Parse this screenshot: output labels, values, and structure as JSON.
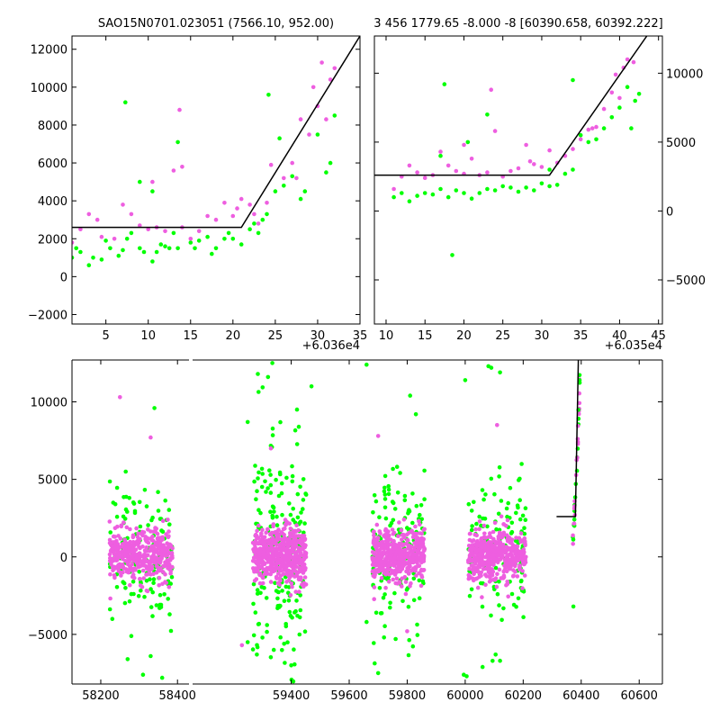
{
  "colors": {
    "series_a": "#00ff00",
    "series_b": "#ee5ee0",
    "fit_line": "#000000",
    "background": "#ffffff"
  },
  "chart_data": [
    {
      "type": "scatter",
      "title": "SAO15N0701.023051 (7566.10, 952.00)",
      "xlabel": "",
      "ylabel": "",
      "x_offset_label": "+6.036e4",
      "xlim": [
        1,
        35
      ],
      "ylim": [
        -2500,
        12700
      ],
      "x_ticks": [
        5,
        10,
        15,
        20,
        25,
        30,
        35
      ],
      "x_tick_labels": [
        "5",
        "10",
        "15",
        "20",
        "25",
        "30",
        "35"
      ],
      "y_ticks": [
        -2000,
        0,
        2000,
        4000,
        6000,
        8000,
        10000,
        12000
      ],
      "y_tick_labels": [
        "−2000",
        "0",
        "2000",
        "4000",
        "6000",
        "8000",
        "10000",
        "12000"
      ],
      "y_axis_side": "left",
      "series": [
        {
          "points": [
            [
              1,
              1000
            ],
            [
              1.5,
              1500
            ],
            [
              2,
              1300
            ],
            [
              3,
              600
            ],
            [
              3.5,
              1000
            ],
            [
              4.5,
              900
            ],
            [
              5,
              1900
            ],
            [
              5.5,
              1500
            ],
            [
              6.5,
              1100
            ],
            [
              7,
              1400
            ],
            [
              7.5,
              2000
            ],
            [
              8,
              2300
            ],
            [
              9,
              1500
            ],
            [
              9.5,
              1300
            ],
            [
              10.5,
              800
            ],
            [
              11,
              1300
            ],
            [
              11.5,
              1700
            ],
            [
              12,
              1600
            ],
            [
              12.5,
              1500
            ],
            [
              13,
              2300
            ],
            [
              13.5,
              1500
            ],
            [
              15,
              1800
            ],
            [
              15.5,
              1500
            ],
            [
              16,
              1900
            ],
            [
              17,
              2100
            ],
            [
              17.5,
              1200
            ],
            [
              18,
              1500
            ],
            [
              19,
              2000
            ],
            [
              19.5,
              2300
            ],
            [
              20,
              2000
            ],
            [
              21,
              1700
            ],
            [
              22,
              2500
            ],
            [
              22.5,
              2800
            ],
            [
              23,
              2300
            ],
            [
              23.5,
              3000
            ],
            [
              24,
              3300
            ],
            [
              25,
              4500
            ],
            [
              25.5,
              7300
            ],
            [
              26,
              4800
            ],
            [
              27,
              5300
            ],
            [
              28,
              4100
            ],
            [
              28.5,
              4500
            ],
            [
              30,
              7500
            ],
            [
              31,
              5500
            ],
            [
              31.5,
              6000
            ],
            [
              32,
              8500
            ],
            [
              13.5,
              7100
            ],
            [
              7.3,
              9200
            ],
            [
              9,
              5000
            ],
            [
              24.2,
              9600
            ],
            [
              10.5,
              4500
            ]
          ]
        },
        {
          "points": [
            [
              1,
              1800
            ],
            [
              2,
              2500
            ],
            [
              3,
              3300
            ],
            [
              4,
              3000
            ],
            [
              4.5,
              2100
            ],
            [
              6,
              2000
            ],
            [
              7,
              3800
            ],
            [
              8,
              3300
            ],
            [
              9,
              2700
            ],
            [
              10,
              2500
            ],
            [
              10.5,
              5000
            ],
            [
              11,
              2600
            ],
            [
              12,
              2400
            ],
            [
              13,
              5600
            ],
            [
              14,
              2600
            ],
            [
              15,
              2000
            ],
            [
              16,
              2400
            ],
            [
              17,
              3200
            ],
            [
              18,
              3000
            ],
            [
              19,
              3900
            ],
            [
              20,
              3200
            ],
            [
              21,
              4100
            ],
            [
              22,
              3800
            ],
            [
              22.5,
              3300
            ],
            [
              24,
              3900
            ],
            [
              24.5,
              5900
            ],
            [
              26,
              5200
            ],
            [
              27,
              6000
            ],
            [
              28,
              8300
            ],
            [
              29,
              7500
            ],
            [
              30,
              9000
            ],
            [
              31,
              8300
            ],
            [
              31.5,
              10400
            ],
            [
              32,
              11000
            ],
            [
              13.7,
              8800
            ],
            [
              14,
              5800
            ],
            [
              20.5,
              3600
            ],
            [
              23,
              2800
            ],
            [
              29.5,
              10000
            ],
            [
              30.5,
              11300
            ],
            [
              27.5,
              5200
            ]
          ]
        }
      ],
      "fit": {
        "x": [
          1,
          21,
          35
        ],
        "y": [
          2600,
          2600,
          12700
        ]
      }
    },
    {
      "type": "scatter",
      "title": "3 456 1779.65 -8.000 -8 [60390.658, 60392.222]",
      "xlabel": "",
      "ylabel": "",
      "x_offset_label": "+6.035e4",
      "xlim": [
        8.5,
        45.5
      ],
      "ylim": [
        -8200,
        12700
      ],
      "x_ticks": [
        10,
        15,
        20,
        25,
        30,
        35,
        40,
        45
      ],
      "x_tick_labels": [
        "10",
        "15",
        "20",
        "25",
        "30",
        "35",
        "40",
        "45"
      ],
      "y_ticks": [
        -5000,
        0,
        5000,
        10000
      ],
      "y_tick_labels": [
        "−5000",
        "0",
        "5000",
        "10000"
      ],
      "y_axis_side": "right",
      "series": [
        {
          "points": [
            [
              11,
              1000
            ],
            [
              12,
              1300
            ],
            [
              13,
              700
            ],
            [
              14,
              1100
            ],
            [
              15,
              1300
            ],
            [
              16,
              1200
            ],
            [
              17,
              1600
            ],
            [
              18,
              1000
            ],
            [
              19,
              1500
            ],
            [
              20,
              1300
            ],
            [
              21,
              900
            ],
            [
              22,
              1300
            ],
            [
              23,
              1600
            ],
            [
              24,
              1500
            ],
            [
              25,
              1800
            ],
            [
              26,
              1700
            ],
            [
              27,
              1400
            ],
            [
              28,
              1700
            ],
            [
              29,
              1500
            ],
            [
              30,
              2000
            ],
            [
              31,
              1800
            ],
            [
              32,
              1900
            ],
            [
              33,
              2700
            ],
            [
              34,
              3000
            ],
            [
              35,
              5500
            ],
            [
              36,
              5000
            ],
            [
              37,
              5200
            ],
            [
              38,
              6000
            ],
            [
              39,
              6800
            ],
            [
              40,
              7500
            ],
            [
              41,
              9000
            ],
            [
              41.5,
              6000
            ],
            [
              42,
              8000
            ],
            [
              42.5,
              8500
            ],
            [
              17.5,
              9200
            ],
            [
              18.5,
              -3200
            ],
            [
              17,
              4000
            ],
            [
              20.5,
              5000
            ],
            [
              34,
              9500
            ],
            [
              23,
              7000
            ],
            [
              31,
              3000
            ]
          ]
        },
        {
          "points": [
            [
              11,
              1600
            ],
            [
              12,
              2500
            ],
            [
              13,
              3300
            ],
            [
              14,
              2800
            ],
            [
              15,
              2400
            ],
            [
              16,
              2600
            ],
            [
              17,
              4300
            ],
            [
              18,
              3300
            ],
            [
              19,
              2900
            ],
            [
              20,
              2700
            ],
            [
              21,
              3800
            ],
            [
              22,
              2600
            ],
            [
              23,
              2800
            ],
            [
              24,
              5800
            ],
            [
              25,
              2500
            ],
            [
              26,
              2900
            ],
            [
              27,
              3100
            ],
            [
              28,
              4800
            ],
            [
              29,
              3400
            ],
            [
              30,
              3200
            ],
            [
              31,
              4400
            ],
            [
              32,
              3500
            ],
            [
              33,
              4000
            ],
            [
              34,
              4500
            ],
            [
              35,
              5200
            ],
            [
              36,
              5900
            ],
            [
              37,
              6100
            ],
            [
              38,
              7400
            ],
            [
              39,
              8600
            ],
            [
              40,
              8200
            ],
            [
              40.5,
              10400
            ],
            [
              41,
              11000
            ],
            [
              41.8,
              10800
            ],
            [
              39.5,
              9900
            ],
            [
              23.5,
              8800
            ],
            [
              20,
              4800
            ],
            [
              28.5,
              3600
            ],
            [
              36.5,
              6000
            ]
          ]
        }
      ],
      "fit": {
        "x": [
          8.5,
          31,
          43.5
        ],
        "y": [
          2600,
          2600,
          12700
        ]
      }
    },
    {
      "type": "scatter",
      "title": "",
      "xlabel": "",
      "ylabel": "",
      "xlim": [
        58125,
        60680
      ],
      "ylim": [
        -8200,
        12700
      ],
      "x_ticks": [
        58200,
        58400,
        59400,
        59600,
        59800,
        60000,
        60200,
        60400,
        60600
      ],
      "x_tick_labels": [
        "58200",
        "58400",
        "59400",
        "59600",
        "59800",
        "60000",
        "60200",
        "60400",
        "60600"
      ],
      "y_ticks": [
        -5000,
        0,
        5000,
        10000
      ],
      "y_tick_labels": [
        "−5000",
        "0",
        "5000",
        "10000"
      ],
      "y_axis_side": "left",
      "broken_axis": [
        58430,
        59060
      ],
      "season_clusters": [
        {
          "center": 58305,
          "half_width": 82,
          "green_spread": 2200,
          "pink_spread": 800,
          "green_count": 130,
          "pink_count": 420
        },
        {
          "center": 59360,
          "half_width": 92,
          "green_spread": 3400,
          "pink_spread": 900,
          "green_count": 220,
          "pink_count": 520
        },
        {
          "center": 59770,
          "half_width": 90,
          "green_spread": 2500,
          "pink_spread": 850,
          "green_count": 150,
          "pink_count": 460
        },
        {
          "center": 60110,
          "half_width": 100,
          "green_spread": 2300,
          "pink_spread": 800,
          "green_count": 150,
          "pink_count": 460
        }
      ],
      "extreme_points": {
        "green": [
          [
            58340,
            9600
          ],
          [
            58265,
            5500
          ],
          [
            58230,
            -4000
          ],
          [
            58270,
            -6600
          ],
          [
            58310,
            -7600
          ],
          [
            58360,
            -7800
          ],
          [
            58330,
            -6400
          ],
          [
            59335,
            12500
          ],
          [
            59285,
            11800
          ],
          [
            59320,
            11600
          ],
          [
            59470,
            11000
          ],
          [
            59420,
            9500
          ],
          [
            59250,
            8700
          ],
          [
            59250,
            -5500
          ],
          [
            59400,
            -7000
          ],
          [
            59340,
            -6000
          ],
          [
            59660,
            12400
          ],
          [
            59810,
            10400
          ],
          [
            59830,
            9200
          ],
          [
            59660,
            -4200
          ],
          [
            59720,
            -5200
          ],
          [
            59700,
            -7500
          ],
          [
            59760,
            -5300
          ],
          [
            60080,
            12300
          ],
          [
            60090,
            12200
          ],
          [
            60000,
            11400
          ],
          [
            60120,
            11900
          ],
          [
            59995,
            -7600
          ],
          [
            60005,
            -7700
          ],
          [
            60060,
            -7100
          ],
          [
            60105,
            -6300
          ],
          [
            60120,
            -6700
          ]
        ],
        "pink": [
          [
            58250,
            10300
          ],
          [
            58330,
            7700
          ],
          [
            59330,
            7000
          ],
          [
            60110,
            8500
          ],
          [
            59700,
            7800
          ],
          [
            59230,
            -5700
          ],
          [
            59800,
            -4800
          ]
        ]
      },
      "flare": {
        "x_range": [
          60370,
          60395
        ],
        "y_min": 1000,
        "y_max": 11200,
        "outlier": [
          60373,
          -3200
        ]
      },
      "fit": {
        "x": [
          60315,
          60380,
          60390
        ],
        "y": [
          2600,
          2600,
          12700
        ]
      }
    }
  ]
}
